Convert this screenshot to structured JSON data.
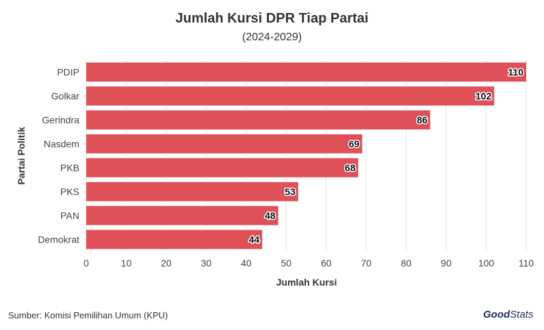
{
  "title": "Jumlah Kursi DPR Tiap Partai",
  "subtitle": "(2024-2029)",
  "source": "Sumber: Komisi Pemilihan Umum (KPU)",
  "logo": {
    "bold": "Good",
    "light": "Stats"
  },
  "chart_data": {
    "type": "bar",
    "orientation": "horizontal",
    "categories": [
      "PDIP",
      "Golkar",
      "Gerindra",
      "Nasdem",
      "PKB",
      "PKS",
      "PAN",
      "Demokrat"
    ],
    "values": [
      110,
      102,
      86,
      69,
      68,
      53,
      48,
      44
    ],
    "xlabel": "Jumlah Kursi",
    "ylabel": "Partai Politik",
    "xlim": [
      0,
      110
    ],
    "xticks": [
      0,
      10,
      20,
      30,
      40,
      50,
      60,
      70,
      80,
      90,
      100,
      110
    ],
    "grid": true,
    "bar_color": "#e05059"
  }
}
